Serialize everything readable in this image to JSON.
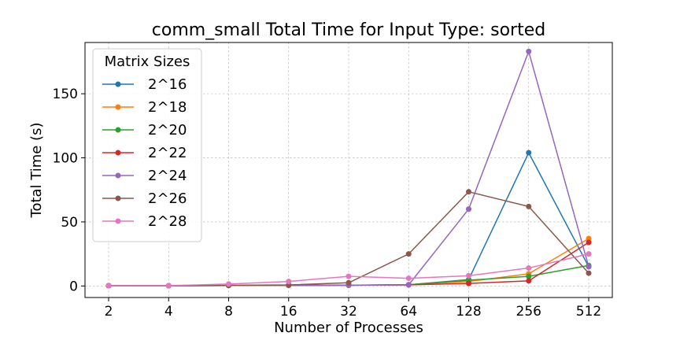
{
  "chart_data": {
    "type": "line",
    "title": "comm_small Total Time for Input Type: sorted",
    "xlabel": "Number of Processes",
    "ylabel": "Total Time (s)",
    "categories": [
      "2",
      "4",
      "8",
      "16",
      "32",
      "64",
      "128",
      "256",
      "512"
    ],
    "x_scale": "log2",
    "ylim": [
      -9,
      190
    ],
    "yticks": [
      0,
      50,
      100,
      150
    ],
    "grid": true,
    "legend": {
      "title": "Matrix Sizes",
      "placement": "top-left"
    },
    "series": [
      {
        "name": "2^16",
        "color": "#1f77b4",
        "values": [
          0.2,
          0.2,
          0.4,
          0.5,
          0.6,
          0.9,
          5.0,
          104.0,
          15.0
        ]
      },
      {
        "name": "2^18",
        "color": "#ff7f0e",
        "values": [
          0.2,
          0.2,
          0.4,
          0.5,
          0.6,
          0.9,
          3.5,
          9.5,
          37.0
        ]
      },
      {
        "name": "2^20",
        "color": "#2ca02c",
        "values": [
          0.2,
          0.2,
          0.4,
          0.5,
          0.6,
          1.0,
          4.5,
          7.5,
          16.0
        ]
      },
      {
        "name": "2^22",
        "color": "#d62728",
        "values": [
          0.2,
          0.2,
          0.4,
          0.5,
          0.6,
          0.9,
          2.0,
          4.0,
          34.0
        ]
      },
      {
        "name": "2^24",
        "color": "#9467bd",
        "values": [
          0.2,
          0.2,
          0.4,
          0.5,
          0.6,
          0.9,
          60.0,
          183.0,
          15.0
        ]
      },
      {
        "name": "2^26",
        "color": "#8c564b",
        "values": [
          0.2,
          0.2,
          0.5,
          0.8,
          2.5,
          25.0,
          73.5,
          62.0,
          10.0
        ]
      },
      {
        "name": "2^28",
        "color": "#e377c2",
        "values": [
          0.2,
          0.3,
          1.5,
          3.5,
          7.5,
          6.0,
          8.0,
          14.0,
          25.0
        ]
      }
    ]
  }
}
